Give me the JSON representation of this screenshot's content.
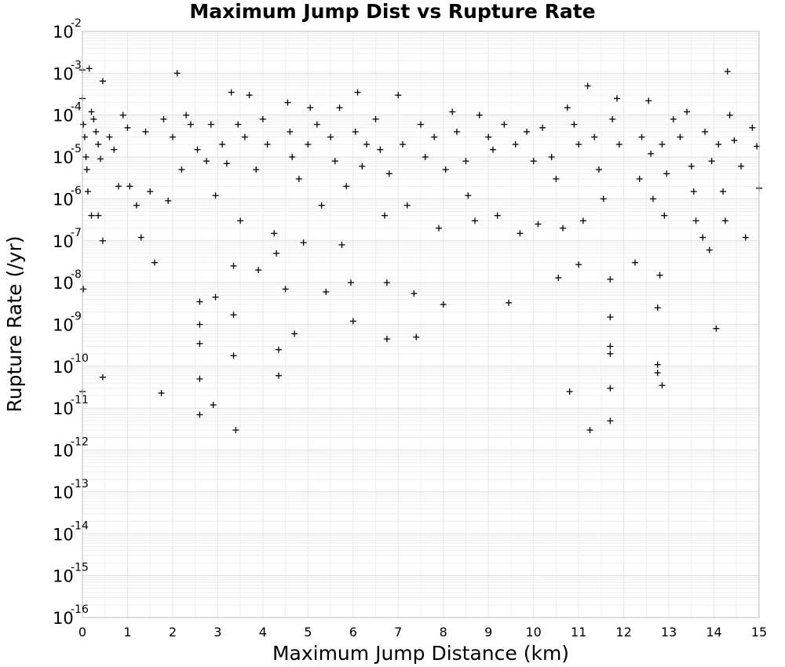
{
  "chart_data": {
    "type": "scatter",
    "title": "Maximum Jump Dist vs Rupture Rate",
    "xlabel": "Maximum Jump Distance (km)",
    "ylabel": "Rupture Rate (/yr)",
    "xlim": [
      0,
      15
    ],
    "ylim": [
      1e-16,
      0.01
    ],
    "yscale": "log",
    "grid": true,
    "marker": "plus",
    "marker_color": "#000000",
    "x_ticks": [
      "0",
      "1",
      "2",
      "3",
      "4",
      "5",
      "6",
      "7",
      "8",
      "9",
      "10",
      "11",
      "12",
      "13",
      "14",
      "15"
    ],
    "y_ticks": [
      {
        "base": "10",
        "exp": "-2"
      },
      {
        "base": "10",
        "exp": "-3"
      },
      {
        "base": "10",
        "exp": "-4"
      },
      {
        "base": "10",
        "exp": "-5"
      },
      {
        "base": "10",
        "exp": "-6"
      },
      {
        "base": "10",
        "exp": "-7"
      },
      {
        "base": "10",
        "exp": "-8"
      },
      {
        "base": "10",
        "exp": "-9"
      },
      {
        "base": "10",
        "exp": "-10"
      },
      {
        "base": "10",
        "exp": "-11"
      },
      {
        "base": "10",
        "exp": "-12"
      },
      {
        "base": "10",
        "exp": "-13"
      },
      {
        "base": "10",
        "exp": "-14"
      },
      {
        "base": "10",
        "exp": "-15"
      },
      {
        "base": "10",
        "exp": "-16"
      }
    ],
    "series": [
      {
        "points": [
          [
            0.0,
            0.0012
          ],
          [
            0.0,
            0.00025
          ],
          [
            0.02,
            6e-05
          ],
          [
            0.05,
            3e-05
          ],
          [
            0.08,
            1e-05
          ],
          [
            0.1,
            5e-06
          ],
          [
            0.12,
            1.5e-06
          ],
          [
            0.02,
            7e-09
          ],
          [
            0.0,
            2.5e-11
          ],
          [
            0.15,
            0.0013
          ],
          [
            0.2,
            0.00012
          ],
          [
            0.25,
            8e-05
          ],
          [
            0.3,
            4e-05
          ],
          [
            0.35,
            2e-05
          ],
          [
            0.4,
            9e-06
          ],
          [
            0.45,
            0.00065
          ],
          [
            0.45,
            1e-07
          ],
          [
            0.35,
            4e-07
          ],
          [
            0.2,
            4e-07
          ],
          [
            0.45,
            5.5e-11
          ],
          [
            0.6,
            3e-05
          ],
          [
            0.7,
            1.5e-05
          ],
          [
            0.8,
            2e-06
          ],
          [
            0.9,
            0.0001
          ],
          [
            1.0,
            5e-05
          ],
          [
            1.05,
            2e-06
          ],
          [
            1.2,
            7e-07
          ],
          [
            1.3,
            1.2e-07
          ],
          [
            1.4,
            4e-05
          ],
          [
            1.5,
            1.5e-06
          ],
          [
            1.6,
            3e-08
          ],
          [
            1.75,
            2.3e-11
          ],
          [
            1.8,
            8e-05
          ],
          [
            1.9,
            9e-07
          ],
          [
            2.0,
            3e-05
          ],
          [
            2.1,
            0.001
          ],
          [
            2.2,
            5e-06
          ],
          [
            2.3,
            0.0001
          ],
          [
            2.4,
            6e-05
          ],
          [
            2.55,
            1.5e-05
          ],
          [
            2.6,
            3.5e-09
          ],
          [
            2.6,
            1e-09
          ],
          [
            2.6,
            3.5e-10
          ],
          [
            2.6,
            5e-11
          ],
          [
            2.6,
            7e-12
          ],
          [
            2.75,
            8e-06
          ],
          [
            2.85,
            6e-05
          ],
          [
            2.95,
            1.2e-06
          ],
          [
            2.95,
            4.5e-09
          ],
          [
            2.9,
            1.2e-11
          ],
          [
            3.1,
            2e-05
          ],
          [
            3.2,
            7e-06
          ],
          [
            3.3,
            0.00035
          ],
          [
            3.35,
            2.5e-08
          ],
          [
            3.35,
            1.7e-09
          ],
          [
            3.35,
            1.8e-10
          ],
          [
            3.4,
            3e-12
          ],
          [
            3.45,
            6e-05
          ],
          [
            3.5,
            3e-07
          ],
          [
            3.6,
            3e-05
          ],
          [
            3.7,
            0.0003
          ],
          [
            3.85,
            5e-06
          ],
          [
            3.9,
            2e-08
          ],
          [
            4.0,
            8e-05
          ],
          [
            4.1,
            2e-05
          ],
          [
            4.25,
            1.5e-07
          ],
          [
            4.3,
            5e-08
          ],
          [
            4.35,
            2.5e-10
          ],
          [
            4.35,
            6e-11
          ],
          [
            4.5,
            7e-09
          ],
          [
            4.55,
            0.0002
          ],
          [
            4.6,
            4e-05
          ],
          [
            4.65,
            1e-05
          ],
          [
            4.7,
            6e-10
          ],
          [
            4.8,
            3e-06
          ],
          [
            4.9,
            9e-08
          ],
          [
            5.0,
            2e-05
          ],
          [
            5.05,
            0.00015
          ],
          [
            5.2,
            6e-05
          ],
          [
            5.3,
            7e-07
          ],
          [
            5.4,
            6e-09
          ],
          [
            5.5,
            3e-05
          ],
          [
            5.6,
            8e-06
          ],
          [
            5.7,
            0.00015
          ],
          [
            5.75,
            8e-08
          ],
          [
            5.85,
            2e-06
          ],
          [
            5.95,
            1e-08
          ],
          [
            6.0,
            1.2e-09
          ],
          [
            6.05,
            4e-05
          ],
          [
            6.1,
            0.00035
          ],
          [
            6.2,
            6e-06
          ],
          [
            6.3,
            2e-05
          ],
          [
            6.5,
            8e-05
          ],
          [
            6.6,
            1.5e-05
          ],
          [
            6.7,
            4e-07
          ],
          [
            6.75,
            1e-08
          ],
          [
            6.75,
            4.5e-10
          ],
          [
            6.8,
            4e-06
          ],
          [
            7.0,
            0.0003
          ],
          [
            7.1,
            2e-05
          ],
          [
            7.2,
            7e-07
          ],
          [
            7.35,
            5.5e-09
          ],
          [
            7.4,
            5e-10
          ],
          [
            7.5,
            6e-05
          ],
          [
            7.6,
            1e-05
          ],
          [
            7.8,
            3e-05
          ],
          [
            7.9,
            2e-07
          ],
          [
            8.0,
            3e-09
          ],
          [
            8.05,
            5e-06
          ],
          [
            8.2,
            0.00012
          ],
          [
            8.3,
            4e-05
          ],
          [
            8.5,
            8e-06
          ],
          [
            8.55,
            1.2e-06
          ],
          [
            8.7,
            3e-07
          ],
          [
            8.8,
            0.0001
          ],
          [
            9.0,
            3e-05
          ],
          [
            9.1,
            1.5e-05
          ],
          [
            9.2,
            4e-07
          ],
          [
            9.35,
            6e-05
          ],
          [
            9.45,
            3.3e-09
          ],
          [
            9.6,
            2e-05
          ],
          [
            9.7,
            1.5e-07
          ],
          [
            9.85,
            4e-05
          ],
          [
            10.0,
            8e-06
          ],
          [
            10.1,
            2.5e-07
          ],
          [
            10.2,
            5e-05
          ],
          [
            10.4,
            1e-05
          ],
          [
            10.5,
            3e-06
          ],
          [
            10.55,
            1.3e-08
          ],
          [
            10.65,
            2e-07
          ],
          [
            10.75,
            0.00015
          ],
          [
            10.8,
            2.5e-11
          ],
          [
            10.9,
            6e-05
          ],
          [
            11.0,
            2e-05
          ],
          [
            11.0,
            2.7e-08
          ],
          [
            11.1,
            3e-07
          ],
          [
            11.2,
            0.0005
          ],
          [
            11.25,
            3e-12
          ],
          [
            11.35,
            3e-05
          ],
          [
            11.45,
            5e-06
          ],
          [
            11.55,
            1e-06
          ],
          [
            11.7,
            1.2e-08
          ],
          [
            11.7,
            1.5e-09
          ],
          [
            11.7,
            3e-10
          ],
          [
            11.7,
            3e-11
          ],
          [
            11.7,
            5e-12
          ],
          [
            11.7,
            2e-10
          ],
          [
            11.75,
            8e-05
          ],
          [
            11.85,
            0.00025
          ],
          [
            11.9,
            2e-05
          ],
          [
            12.25,
            3e-08
          ],
          [
            12.35,
            3e-06
          ],
          [
            12.4,
            3e-05
          ],
          [
            12.55,
            0.00022
          ],
          [
            12.6,
            1.2e-05
          ],
          [
            12.65,
            1e-06
          ],
          [
            12.75,
            2.5e-09
          ],
          [
            12.75,
            1.1e-10
          ],
          [
            12.75,
            7e-11
          ],
          [
            12.8,
            1.5e-08
          ],
          [
            12.85,
            3.5e-11
          ],
          [
            12.85,
            2e-05
          ],
          [
            12.9,
            4e-07
          ],
          [
            12.95,
            4e-06
          ],
          [
            13.1,
            8e-05
          ],
          [
            13.25,
            3e-05
          ],
          [
            13.4,
            0.00012
          ],
          [
            13.5,
            6e-06
          ],
          [
            13.55,
            1.5e-06
          ],
          [
            13.6,
            3e-07
          ],
          [
            13.75,
            1.2e-07
          ],
          [
            13.8,
            4e-05
          ],
          [
            13.9,
            6e-08
          ],
          [
            13.95,
            8e-06
          ],
          [
            14.05,
            8e-10
          ],
          [
            14.1,
            2e-05
          ],
          [
            14.2,
            1.5e-06
          ],
          [
            14.25,
            3e-07
          ],
          [
            14.3,
            0.0011
          ],
          [
            14.35,
            0.0001
          ],
          [
            14.45,
            2.5e-05
          ],
          [
            14.6,
            6e-06
          ],
          [
            14.7,
            1.2e-07
          ],
          [
            14.85,
            5e-05
          ],
          [
            14.95,
            1.8e-05
          ],
          [
            15.0,
            1.8e-06
          ]
        ]
      }
    ]
  }
}
